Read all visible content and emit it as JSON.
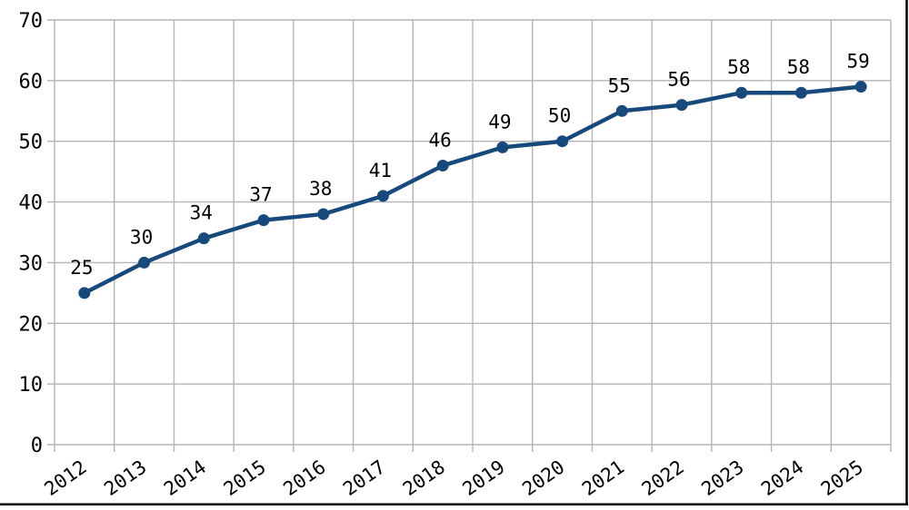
{
  "chart_data": {
    "type": "line",
    "title": "",
    "xlabel": "",
    "ylabel": "",
    "categories": [
      "2012",
      "2013",
      "2014",
      "2015",
      "2016",
      "2017",
      "2018",
      "2019",
      "2020",
      "2021",
      "2022",
      "2023",
      "2024",
      "2025"
    ],
    "series": [
      {
        "name": "values",
        "values": [
          25,
          30,
          34,
          37,
          38,
          41,
          46,
          49,
          50,
          55,
          56,
          58,
          58,
          59
        ]
      }
    ],
    "data_labels": [
      "25",
      "30",
      "34",
      "37",
      "38",
      "41",
      "46",
      "49",
      "50",
      "55",
      "56",
      "58",
      "58",
      "59"
    ],
    "ylim": [
      0,
      70
    ],
    "ytick_step": 10,
    "ytick_labels": [
      "0",
      "10",
      "20",
      "30",
      "40",
      "50",
      "60",
      "70"
    ],
    "grid": "both",
    "legend_position": "none",
    "x_label_rotation_deg": -35,
    "colors": {
      "line": "#17497d",
      "marker": "#17497d",
      "grid": "#b5b5b5",
      "text": "#000000",
      "background": "#ffffff",
      "border": "#000000"
    }
  }
}
